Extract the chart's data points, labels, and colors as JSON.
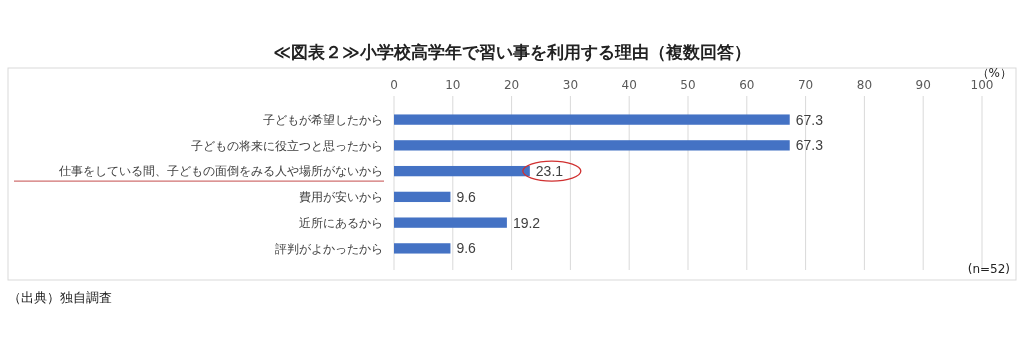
{
  "chart_data": {
    "type": "bar",
    "orientation": "horizontal",
    "title": "≪図表２≫小学校高学年で習い事を利用する理由（複数回答）",
    "xlabel": "（%）",
    "categories": [
      "子どもが希望したから",
      "子どもの将来に役立つと思ったから",
      "仕事をしている間、子どもの面倒をみる人や場所がないから",
      "費用が安いから",
      "近所にあるから",
      "評判がよかったから"
    ],
    "values": [
      67.3,
      67.3,
      23.1,
      9.6,
      19.2,
      9.6
    ],
    "color": "#4472c4",
    "data_labels": true,
    "xlim": [
      0,
      100
    ],
    "xticks": [
      0,
      10,
      20,
      30,
      40,
      50,
      60,
      70,
      80,
      90,
      100
    ],
    "grid": "x",
    "annotations": [
      "(n=52)",
      "（出典）独自調査"
    ]
  }
}
